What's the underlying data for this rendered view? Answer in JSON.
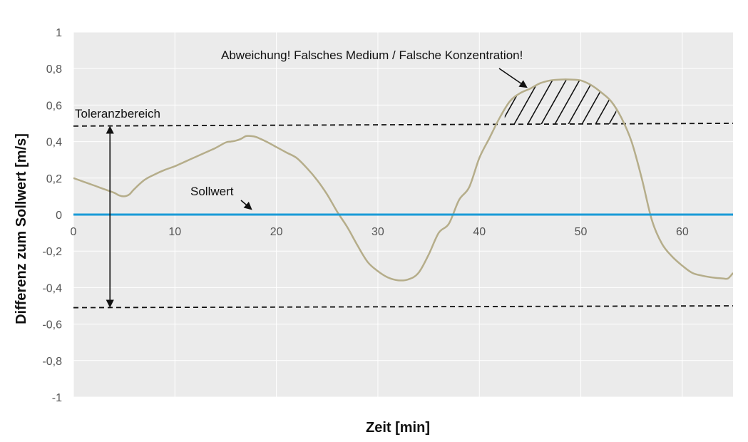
{
  "chart_data": {
    "type": "line",
    "xlabel": "Zeit [min]",
    "ylabel": "Differenz zum Sollwert [m/s]",
    "xlim": [
      0,
      65
    ],
    "ylim": [
      -1,
      1
    ],
    "x_ticks": [
      0,
      10,
      20,
      30,
      40,
      50,
      60
    ],
    "x_tick_labels": [
      "0",
      "10",
      "20",
      "30",
      "40",
      "50",
      "60"
    ],
    "y_ticks": [
      1,
      0.8,
      0.6,
      0.4,
      0.2,
      0,
      -0.2,
      -0.4,
      -0.6,
      -0.8,
      -1
    ],
    "y_tick_labels": [
      "1",
      "0,8",
      "0,6",
      "0,4",
      "0,2",
      "0",
      "-0,2",
      "-0,4",
      "-0,6",
      "-0,8",
      "-1"
    ],
    "grid": true,
    "background": "#ebebeb",
    "colors": {
      "measurement": "#b5ad8a",
      "setpoint": "#1a9bd7",
      "tolerance": "#111111"
    },
    "series": [
      {
        "x": [
          0,
          1,
          2,
          3,
          4,
          4.5,
          5,
          5.5,
          6,
          7,
          8,
          9,
          10,
          11,
          12,
          13,
          14,
          15,
          15.5,
          16,
          16.5,
          17,
          17.5,
          18,
          19,
          20,
          21,
          22,
          23,
          24,
          25,
          26,
          27,
          28,
          29,
          30,
          31,
          32,
          33,
          34,
          35,
          36,
          37,
          38,
          39,
          40,
          41,
          42,
          43,
          44,
          45,
          46,
          47,
          48,
          49,
          50,
          51,
          52,
          53,
          54,
          55,
          56,
          57,
          58,
          59,
          60,
          61,
          62,
          63,
          64,
          64.5,
          65
        ],
        "values": [
          0.2,
          0.18,
          0.16,
          0.14,
          0.12,
          0.105,
          0.1,
          0.11,
          0.14,
          0.19,
          0.22,
          0.245,
          0.265,
          0.29,
          0.315,
          0.34,
          0.365,
          0.395,
          0.4,
          0.405,
          0.415,
          0.43,
          0.43,
          0.425,
          0.4,
          0.37,
          0.34,
          0.31,
          0.255,
          0.19,
          0.11,
          0.015,
          -0.07,
          -0.17,
          -0.26,
          -0.31,
          -0.345,
          -0.36,
          -0.355,
          -0.32,
          -0.22,
          -0.1,
          -0.05,
          0.08,
          0.15,
          0.31,
          0.42,
          0.53,
          0.62,
          0.665,
          0.69,
          0.72,
          0.735,
          0.74,
          0.74,
          0.735,
          0.71,
          0.67,
          0.62,
          0.53,
          0.4,
          0.2,
          -0.03,
          -0.16,
          -0.23,
          -0.28,
          -0.32,
          -0.335,
          -0.345,
          -0.35,
          -0.35,
          -0.32
        ]
      },
      {
        "x": [
          0,
          65
        ],
        "values": [
          0,
          0
        ]
      }
    ],
    "tolerance_upper": [
      0.485,
      0.5
    ],
    "tolerance_lower": [
      -0.51,
      -0.5
    ],
    "annotations": {
      "deviation": "Abweichung! Falsches Medium / Falsche Konzentration!",
      "tolerance": "Toleranzbereich",
      "setpoint": "Sollwert"
    },
    "tolerance_arrow_x": 3.6,
    "hatch_range": [
      42.5,
      53.5
    ]
  }
}
